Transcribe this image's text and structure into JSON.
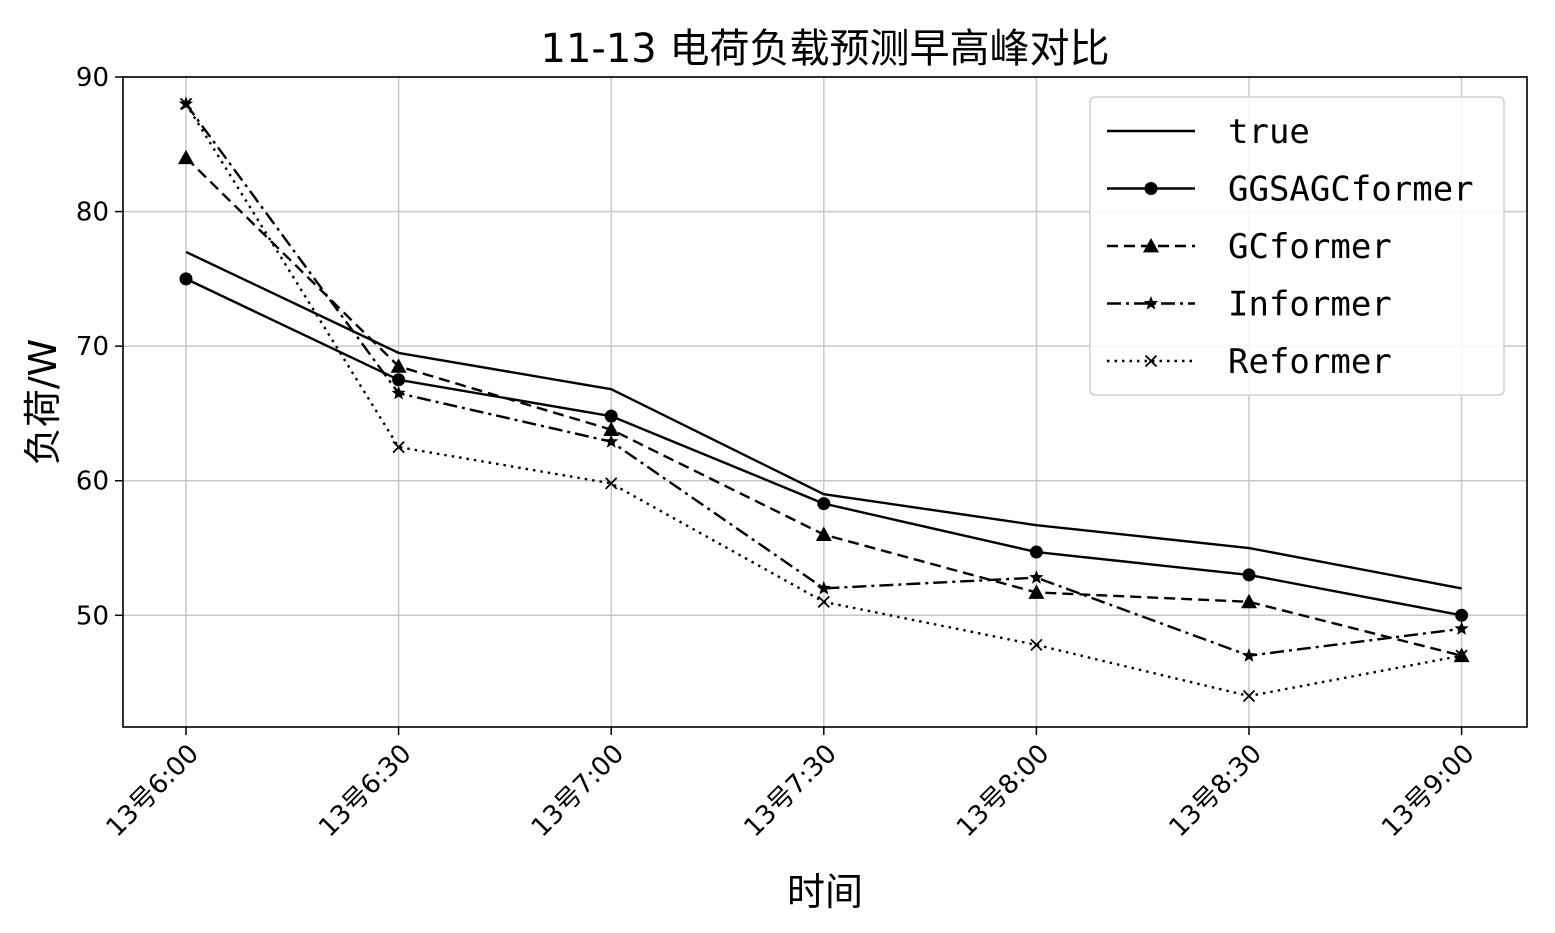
{
  "chart_data": {
    "type": "line",
    "title": "11-13 电荷负载预测早高峰对比",
    "xlabel": "时间",
    "ylabel": "负荷/W",
    "categories": [
      "13号6:00",
      "13号6:30",
      "13号7:00",
      "13号7:30",
      "13号8:00",
      "13号8:30",
      "13号9:00"
    ],
    "ylim": [
      41.7,
      90
    ],
    "yticks": [
      50,
      60,
      70,
      80,
      90
    ],
    "grid": true,
    "legend_position": "top-right",
    "series": [
      {
        "name": "true",
        "values": [
          77.0,
          69.5,
          66.8,
          59.0,
          56.7,
          55.0,
          52.0
        ],
        "marker": "none",
        "dash": "solid"
      },
      {
        "name": "GGSAGCformer",
        "values": [
          75.0,
          67.5,
          64.8,
          58.3,
          54.7,
          53.0,
          50.0
        ],
        "marker": "circle",
        "dash": "solid"
      },
      {
        "name": "GCformer",
        "values": [
          84.0,
          68.5,
          63.8,
          56.0,
          51.7,
          51.0,
          47.0
        ],
        "marker": "triangle",
        "dash": "dashed"
      },
      {
        "name": "Informer",
        "values": [
          88.0,
          66.5,
          62.9,
          52.0,
          52.8,
          47.0,
          49.0
        ],
        "marker": "star",
        "dash": "dashdot"
      },
      {
        "name": "Reformer",
        "values": [
          88.0,
          62.5,
          59.8,
          51.0,
          47.8,
          44.0,
          47.0
        ],
        "marker": "x",
        "dash": "dotted"
      }
    ],
    "colors": {
      "line": "#000000",
      "grid": "#c8c8c8",
      "background": "#ffffff"
    }
  }
}
